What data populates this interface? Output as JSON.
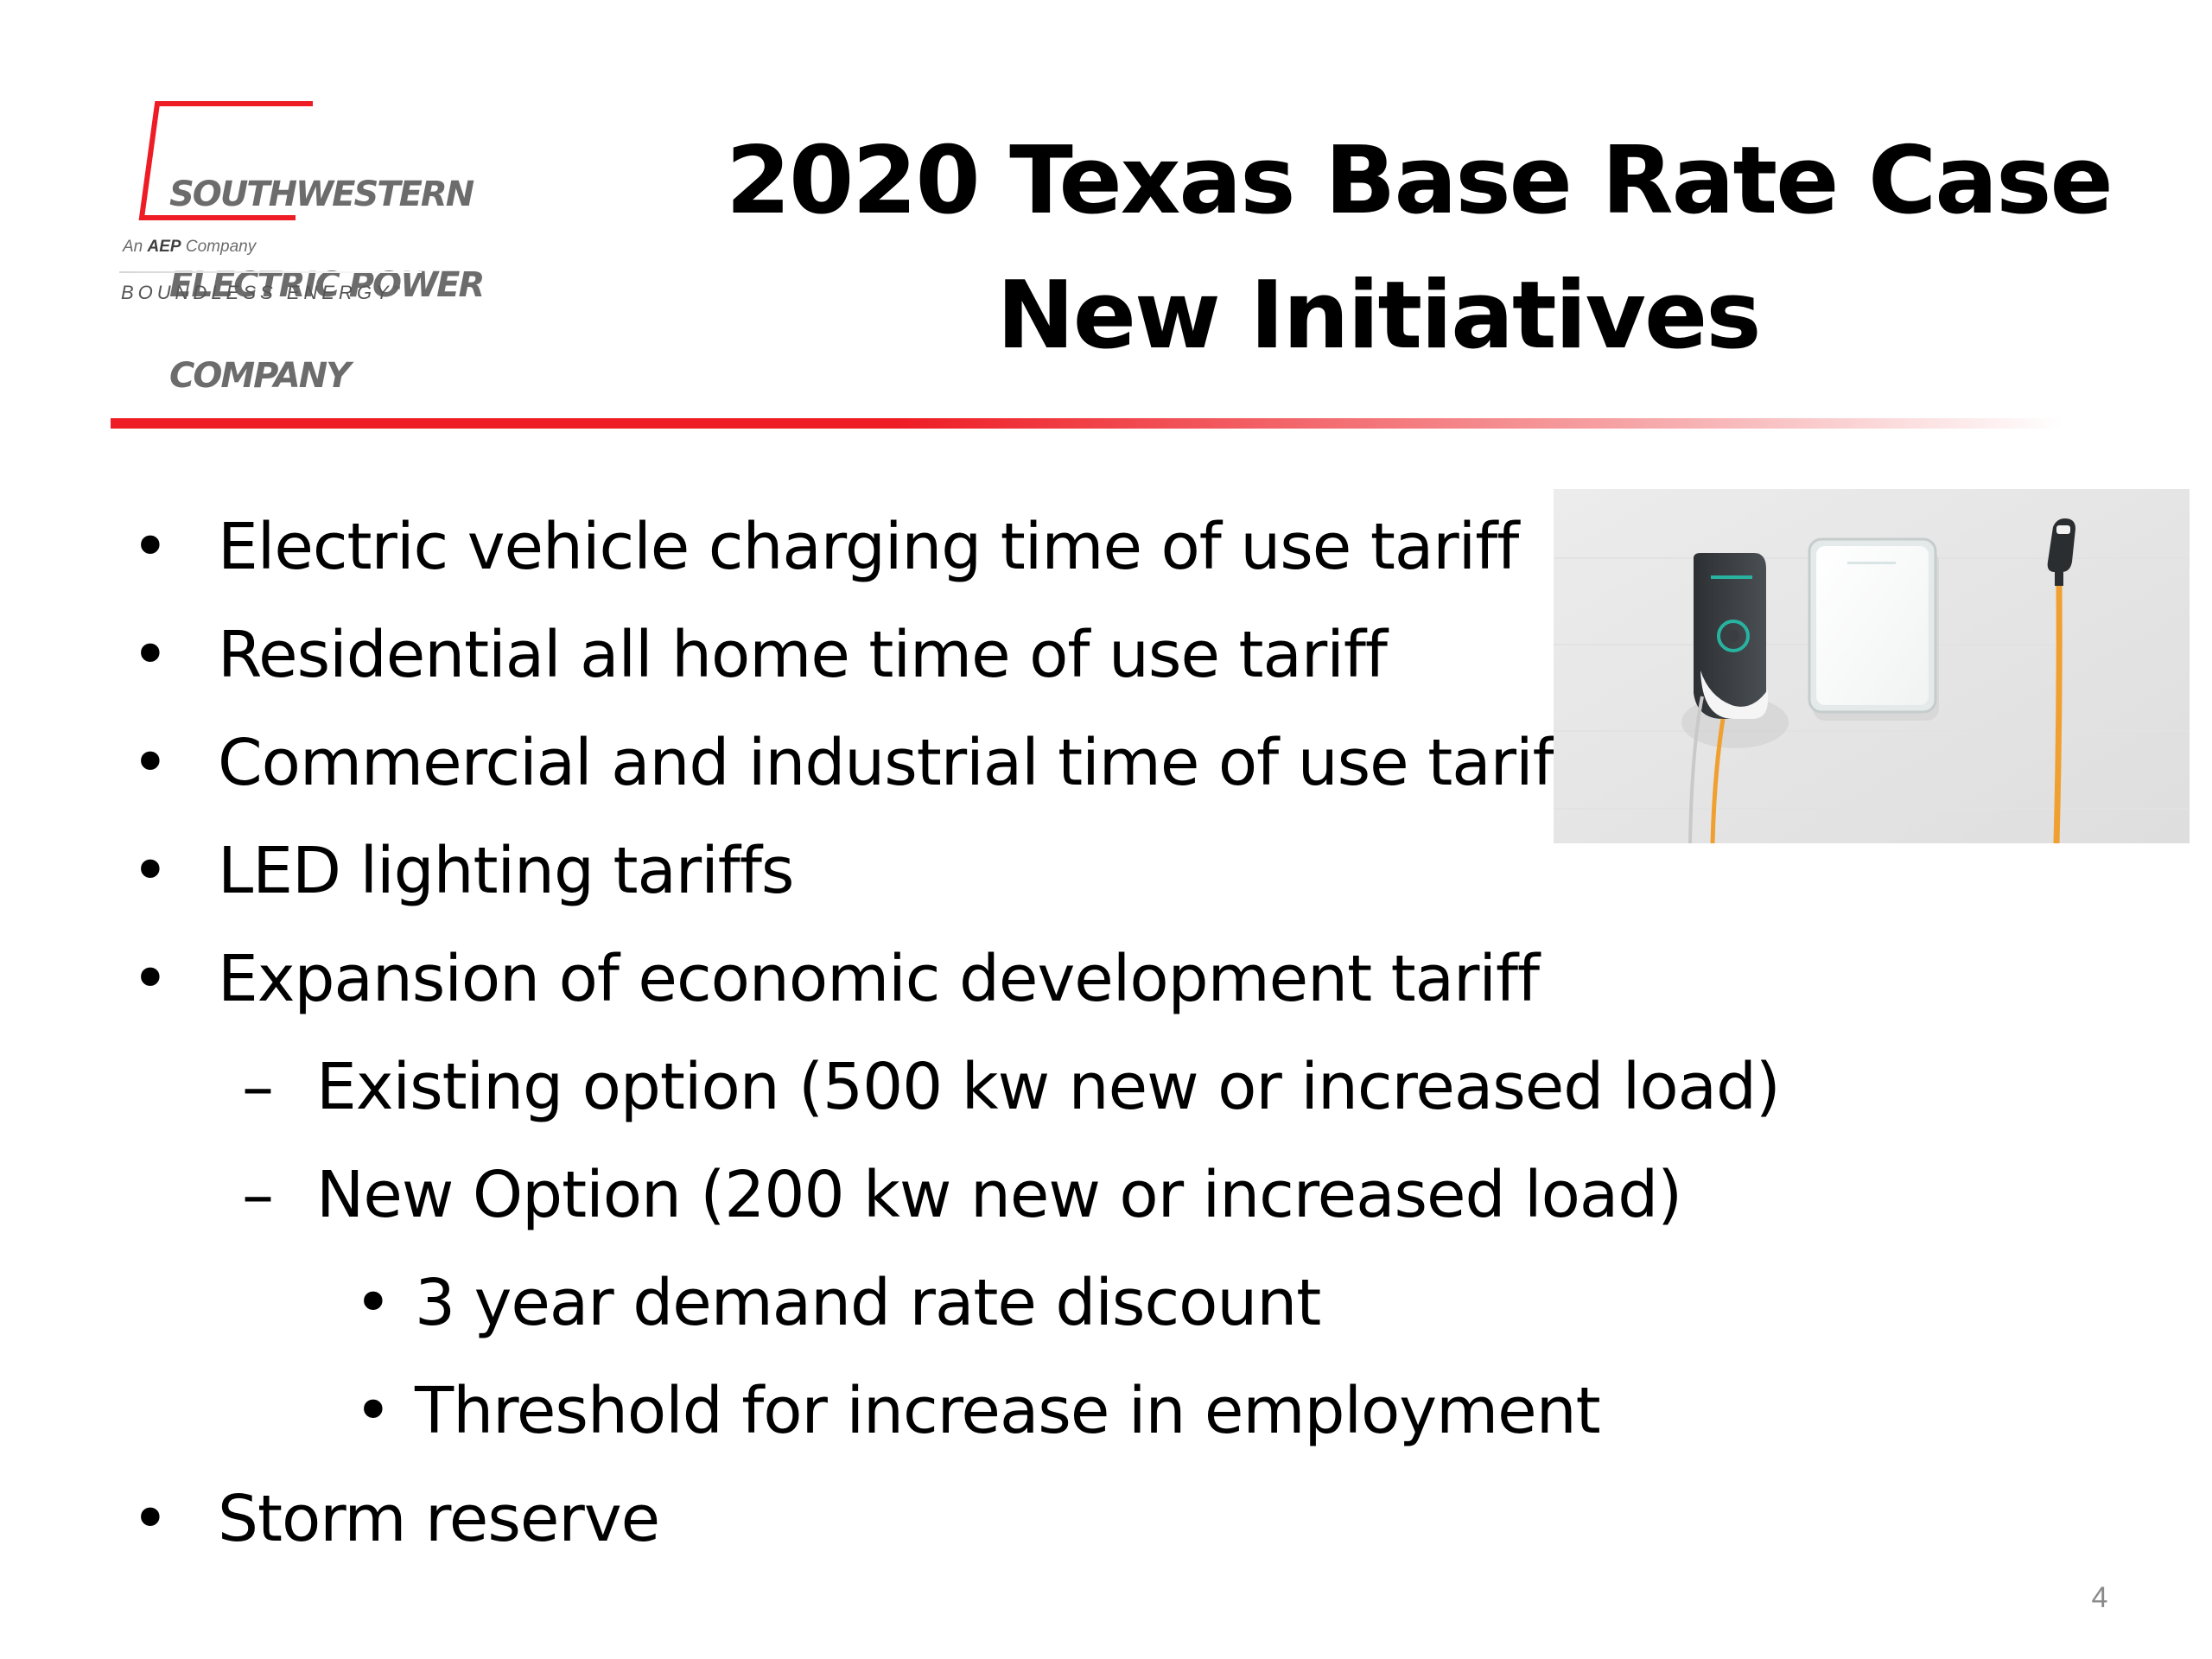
{
  "logo": {
    "name_lines": [
      "SOUTHWESTERN",
      "ELECTRIC POWER",
      "COMPANY"
    ],
    "affiliation_prefix": "An",
    "affiliation_brand": "AEP",
    "affiliation_suffix": "Company",
    "tagline": "BOUNDLESS ENERGY",
    "brand_color": "#ee1c24"
  },
  "title": {
    "line1": "2020 Texas Base Rate Case",
    "line2": "New Initiatives"
  },
  "bullets": [
    {
      "marker": "•",
      "text": "Electric vehicle charging time of use tariff"
    },
    {
      "marker": "•",
      "text": "Residential all home time of use tariff"
    },
    {
      "marker": "•",
      "text": "Commercial and industrial time of use tariff"
    },
    {
      "marker": "•",
      "text": "LED lighting tariffs"
    },
    {
      "marker": "•",
      "text": "Expansion of economic development tariff"
    },
    {
      "marker": "–",
      "text": "Existing option  (500 kw new or increased load)"
    },
    {
      "marker": "–",
      "text": "New Option (200 kw new or increased load)"
    },
    {
      "marker": "•",
      "text": "3 year demand rate discount"
    },
    {
      "marker": "•",
      "text": "Threshold for increase in employment"
    },
    {
      "marker": "•",
      "text": "Storm reserve"
    }
  ],
  "photo": {
    "cable_color": "#f0a030",
    "wall_color": "#e9e9e9"
  },
  "page_number": "4"
}
